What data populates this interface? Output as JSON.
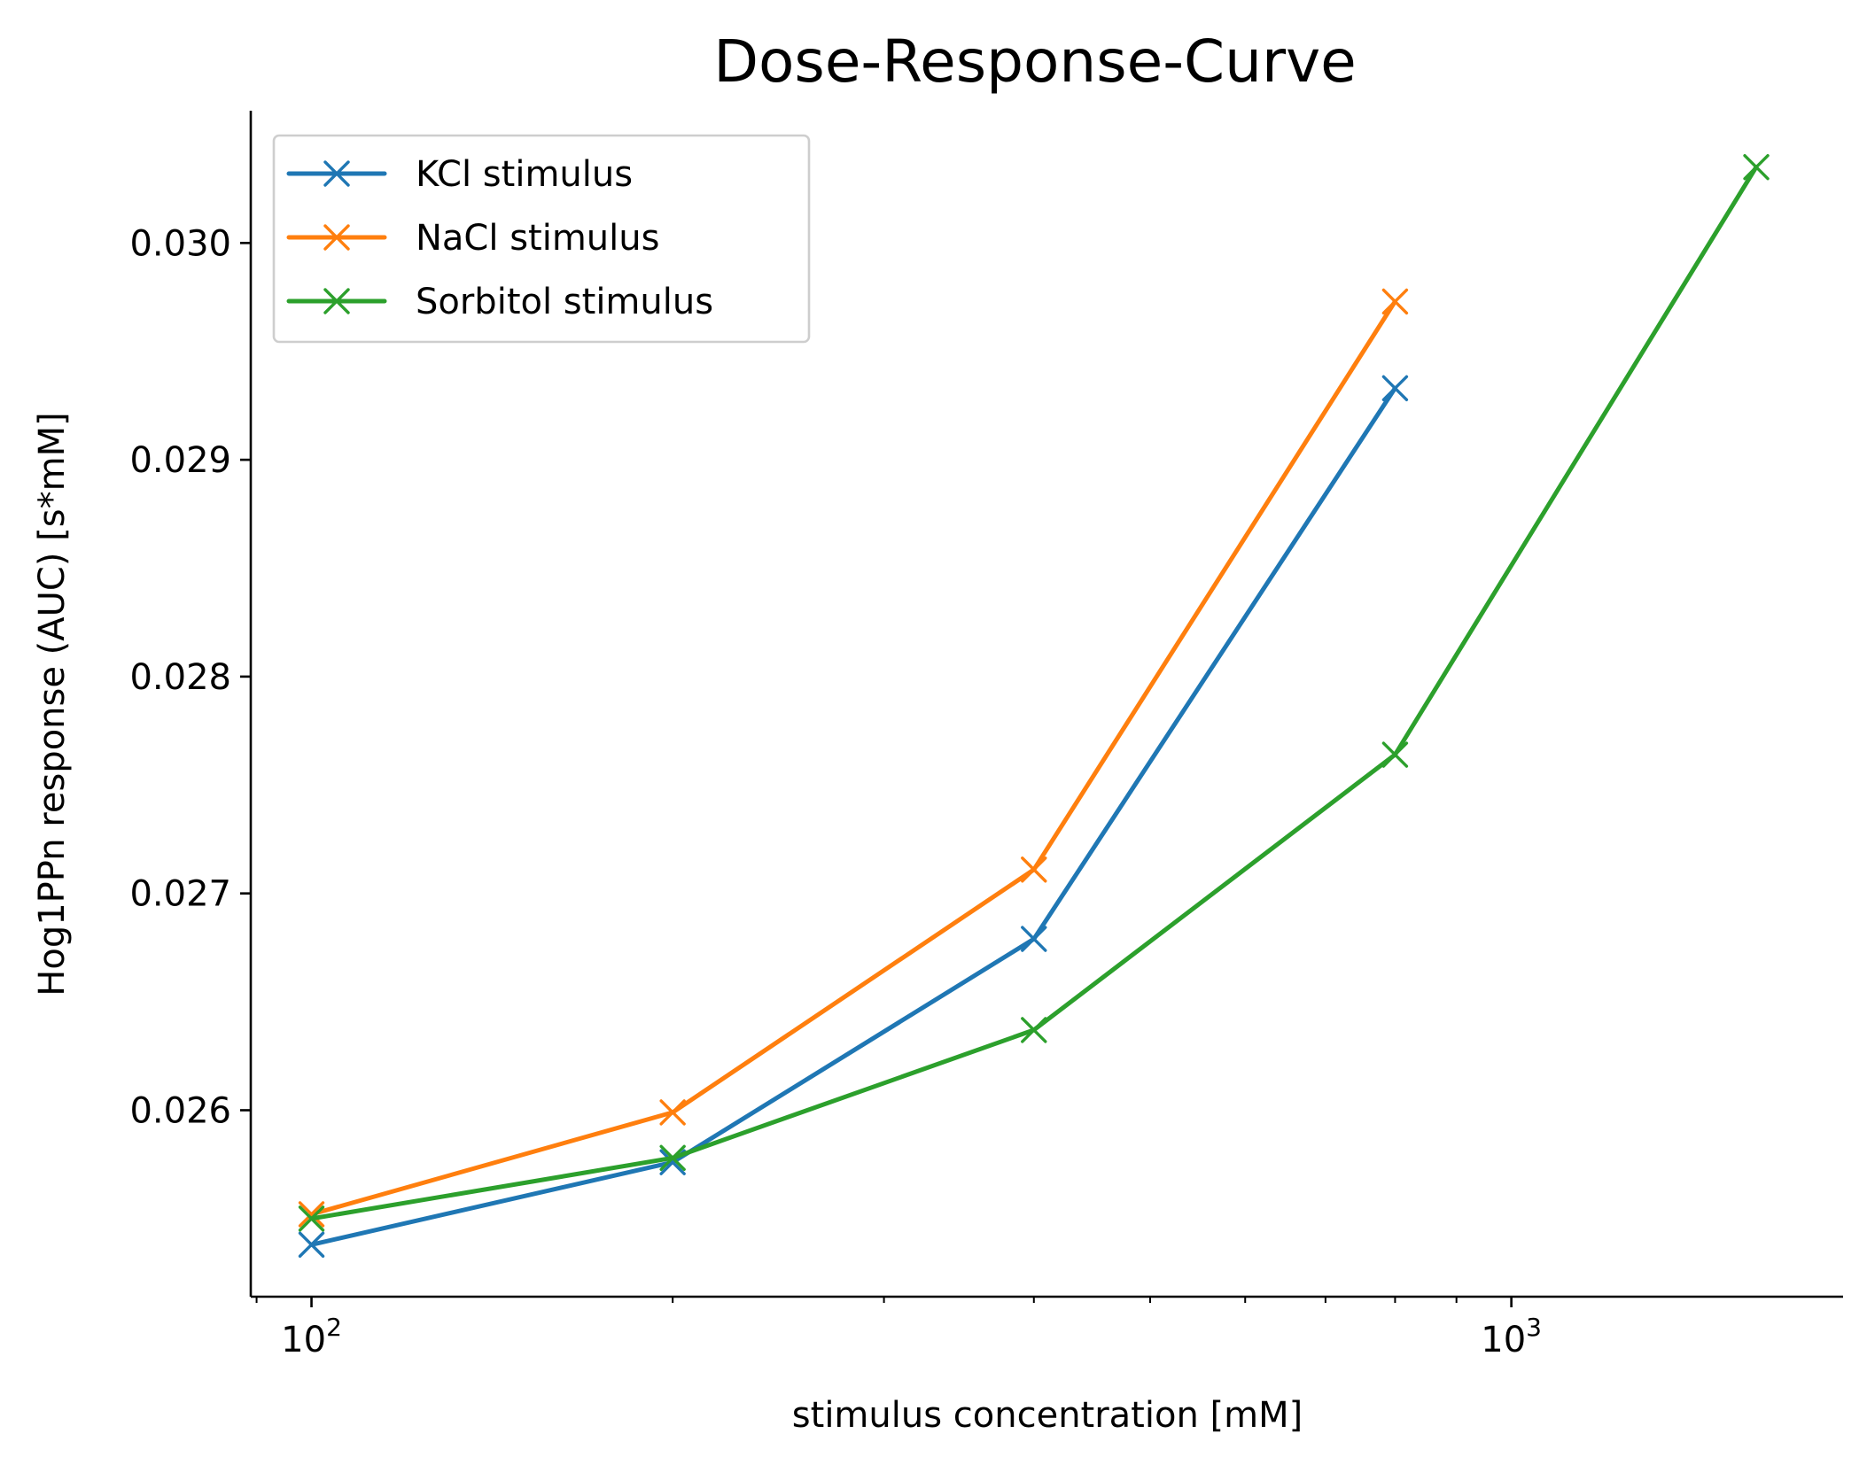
{
  "chart_data": {
    "type": "line",
    "title": "Dose-Response-Curve",
    "xlabel": "stimulus concentration [mM]",
    "ylabel": "Hog1PPn response (AUC) [s*mM]",
    "xscale": "log",
    "xlim": [
      89,
      1890
    ],
    "ylim": [
      0.02514,
      0.03061
    ],
    "xticks": [
      {
        "value": 100,
        "base": "10",
        "exp": "2"
      },
      {
        "value": 1000,
        "base": "10",
        "exp": "3"
      }
    ],
    "yticks": [
      {
        "value": 0.026,
        "label": "0.026"
      },
      {
        "value": 0.027,
        "label": "0.027"
      },
      {
        "value": 0.028,
        "label": "0.028"
      },
      {
        "value": 0.029,
        "label": "0.029"
      },
      {
        "value": 0.03,
        "label": "0.030"
      }
    ],
    "grid": false,
    "legend": {
      "placement": "top-left"
    },
    "marker": "x",
    "series": [
      {
        "name": "KCl stimulus",
        "color": "#1f77b4",
        "x": [
          100,
          200,
          400,
          800
        ],
        "y": [
          0.02538,
          0.02576,
          0.02679,
          0.02933
        ]
      },
      {
        "name": "NaCl stimulus",
        "color": "#ff7f0e",
        "x": [
          100,
          200,
          400,
          800
        ],
        "y": [
          0.02552,
          0.02599,
          0.02711,
          0.02973
        ]
      },
      {
        "name": "Sorbitol stimulus",
        "color": "#2ca02c",
        "x": [
          100,
          200,
          400,
          800,
          1600
        ],
        "y": [
          0.0255,
          0.02578,
          0.02637,
          0.02764,
          0.03035
        ]
      }
    ]
  }
}
